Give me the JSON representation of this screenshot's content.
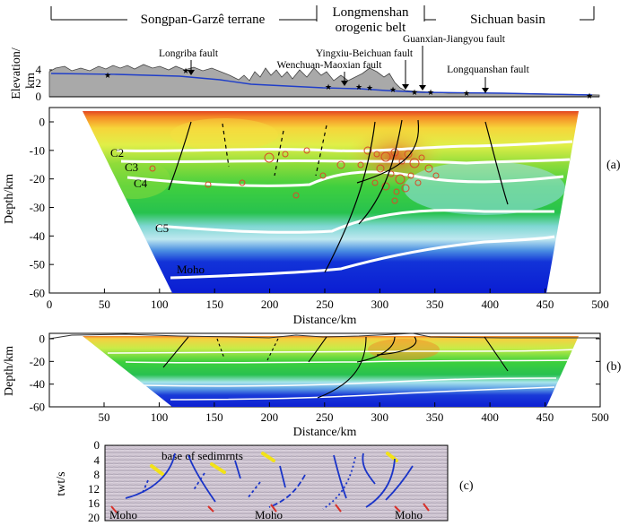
{
  "terranes": {
    "songpan": "Songpan-Garzê terrane",
    "longmenshan_1": "Longmenshan",
    "longmenshan_2": "orogenic belt",
    "sichuan": "Sichuan basin"
  },
  "faults": [
    {
      "label": "Longriba fault",
      "distance": 130
    },
    {
      "label": "Wenchuan-Maoxian fault",
      "distance": 283
    },
    {
      "label": "Yingxiu-Beichuan fault",
      "distance": 320
    },
    {
      "label": "Guanxian-Jiangyou fault",
      "distance": 333
    },
    {
      "label": "Longquanshan fault",
      "distance": 395
    }
  ],
  "topo_panel": {
    "ylabel_1": "Elevation/",
    "ylabel_2": "km",
    "yticks": [
      "0",
      "2",
      "4"
    ],
    "stations_km": [
      55,
      125,
      252,
      293,
      302,
      320,
      340,
      345,
      375,
      490
    ]
  },
  "panel_a": {
    "label": "(a)",
    "ylabel": "Depth/km",
    "xlabel": "Distance/km",
    "yticks": [
      "0",
      "-10",
      "-20",
      "-30",
      "-40",
      "-50",
      "-60"
    ],
    "xticks": [
      "0",
      "50",
      "100",
      "150",
      "200",
      "250",
      "300",
      "350",
      "400",
      "450",
      "500"
    ],
    "layers": [
      "C2",
      "C3",
      "C4",
      "C5",
      "Moho"
    ]
  },
  "panel_b": {
    "label": "(b)",
    "ylabel": "Depth/km",
    "xlabel": "Distance/km",
    "yticks": [
      "0",
      "-20",
      "-40",
      "-60"
    ],
    "xticks": [
      "50",
      "100",
      "150",
      "200",
      "250",
      "300",
      "350",
      "400",
      "450",
      "500"
    ]
  },
  "panel_c": {
    "label": "(c)",
    "ylabel": "twt/s",
    "yticks": [
      "0",
      "4",
      "8",
      "12",
      "16",
      "20"
    ],
    "annotation": "base of sedimrnts",
    "moho_labels": [
      "Moho",
      "Moho",
      "Moho"
    ]
  },
  "colors": {
    "station": "#e0201c",
    "boundary": "#ffffff",
    "seismicity": "#d84a2a",
    "interp_line": "#1a34c8",
    "sediment_marker": "#f2e218"
  }
}
